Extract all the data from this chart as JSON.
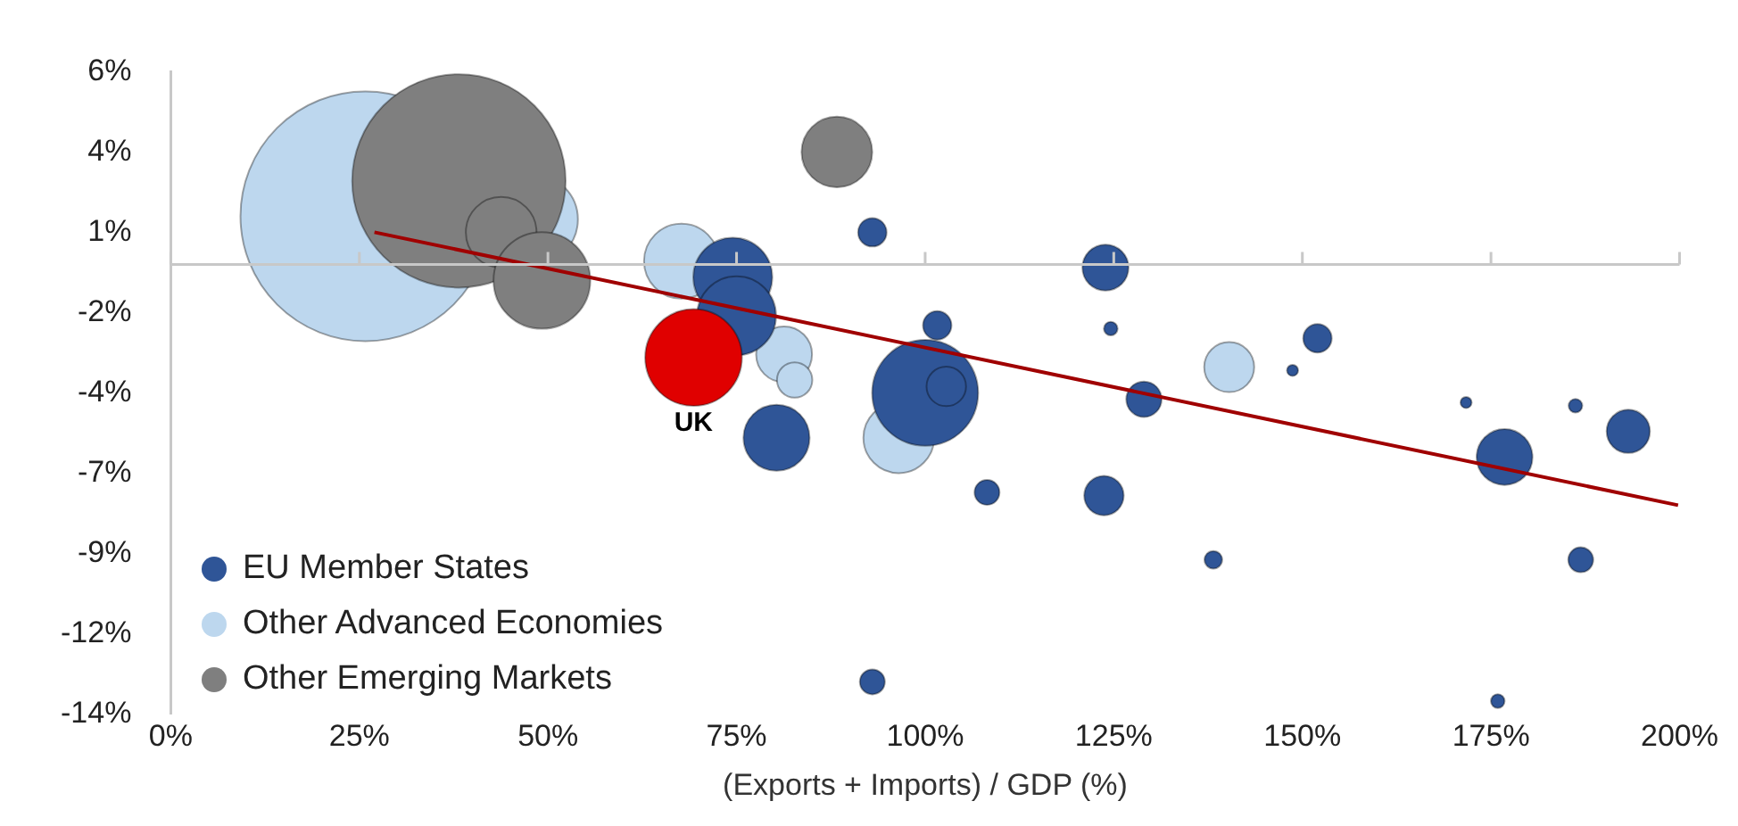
{
  "chart_data": {
    "type": "bubble",
    "xlabel": "(Exports + Imports) / GDP (%)",
    "xlim": [
      0,
      200
    ],
    "xticks": [
      {
        "value": 0,
        "label": "0%"
      },
      {
        "value": 25,
        "label": "25%"
      },
      {
        "value": 50,
        "label": "50%"
      },
      {
        "value": 75,
        "label": "75%"
      },
      {
        "value": 100,
        "label": "100%"
      },
      {
        "value": 125,
        "label": "125%"
      },
      {
        "value": 150,
        "label": "150%"
      },
      {
        "value": 175,
        "label": "175%"
      },
      {
        "value": 200,
        "label": "200%"
      }
    ],
    "ylim": [
      -14,
      6
    ],
    "yticks": [
      {
        "value": 6,
        "label": "6%"
      },
      {
        "value": 3.5,
        "label": "4%"
      },
      {
        "value": 1,
        "label": "1%"
      },
      {
        "value": -1.5,
        "label": "-2%"
      },
      {
        "value": -4,
        "label": "-4%"
      },
      {
        "value": -6.5,
        "label": "-7%"
      },
      {
        "value": -9,
        "label": "-9%"
      },
      {
        "value": -11.5,
        "label": "-12%"
      },
      {
        "value": -14,
        "label": "-14%"
      }
    ],
    "grid": false,
    "legend": "bottom left",
    "annotations": [
      {
        "text": "UK",
        "x": 69.3,
        "y": -2.9
      }
    ],
    "series": [
      {
        "type": "line",
        "color": "#a00000",
        "x": [
          27,
          199.8
        ],
        "values": [
          1.0,
          -7.5
        ]
      },
      {
        "type": "bubble",
        "color": "#e00000",
        "x": [
          69.3
        ],
        "values": [
          -2.9
        ],
        "sizes": [
          0.15
        ]
      },
      {
        "type": "bubble",
        "name": "EU Member States",
        "color": "#2f5597",
        "x": [
          100,
          102.8,
          74.5,
          75,
          80.3,
          93,
          123.9,
          101.6,
          124.6,
          152,
          148.7,
          129,
          171.7,
          186.2,
          193.2,
          176.8,
          108.2,
          123.7,
          138.2,
          186.9,
          93,
          175.9
        ],
        "values": [
          -4.0,
          -3.8,
          -0.4,
          -1.6,
          -5.4,
          1.0,
          -0.1,
          -1.9,
          -2.0,
          -2.3,
          -3.3,
          -4.2,
          -4.3,
          -4.4,
          -5.2,
          -6.0,
          -7.1,
          -7.2,
          -9.2,
          -9.2,
          -13.0,
          -13.6
        ],
        "sizes": [
          0.18,
          0.025,
          0.1,
          0.1,
          0.07,
          0.013,
          0.034,
          0.013,
          0.003,
          0.013,
          0.002,
          0.02,
          0.002,
          0.003,
          0.03,
          0.05,
          0.01,
          0.025,
          0.005,
          0.01,
          0.01,
          0.003
        ]
      },
      {
        "type": "bubble",
        "name": "Other Advanced Economies",
        "color": "#bdd7ee",
        "x": [
          25.8,
          48,
          67.7,
          81.3,
          82.7,
          96.5,
          140.3
        ],
        "values": [
          1.5,
          1.4,
          0.1,
          -2.8,
          -3.6,
          -5.4,
          -3.2
        ],
        "sizes": [
          1,
          0.13,
          0.09,
          0.05,
          0.02,
          0.08,
          0.04
        ]
      },
      {
        "type": "bubble",
        "name": "Other Emerging Markets",
        "color": "#7f7f7f",
        "x": [
          38.2,
          43.8,
          49.2,
          88.3
        ],
        "values": [
          2.6,
          1.0,
          -0.5,
          3.5
        ],
        "sizes": [
          0.73,
          0.08,
          0.15,
          0.08
        ]
      }
    ]
  }
}
